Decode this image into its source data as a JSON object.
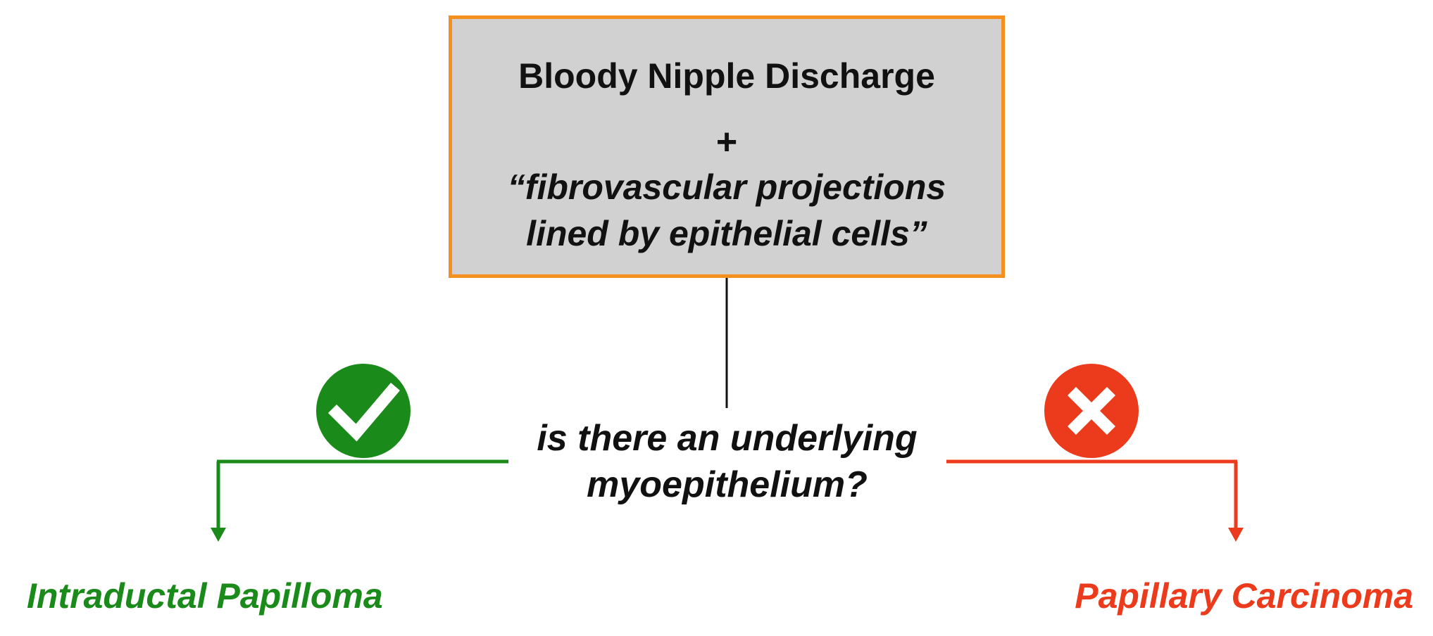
{
  "box": {
    "title": "Bloody Nipple Discharge",
    "plus": "+",
    "quote_line1": "“fibrovascular projections",
    "quote_line2": "lined by epithelial cells”"
  },
  "question": {
    "line1": "is there an underlying",
    "line2": "myoepithelium?"
  },
  "outcomes": {
    "yes_label": "Intraductal Papilloma",
    "no_label": "Papillary Carcinoma"
  },
  "icons": {
    "yes": "checkmark-icon",
    "no": "x-mark-icon"
  },
  "colors": {
    "box_fill": "#d1d1d1",
    "box_border": "#f5901e",
    "yes": "#1a8a1a",
    "no": "#ec3b1c"
  }
}
